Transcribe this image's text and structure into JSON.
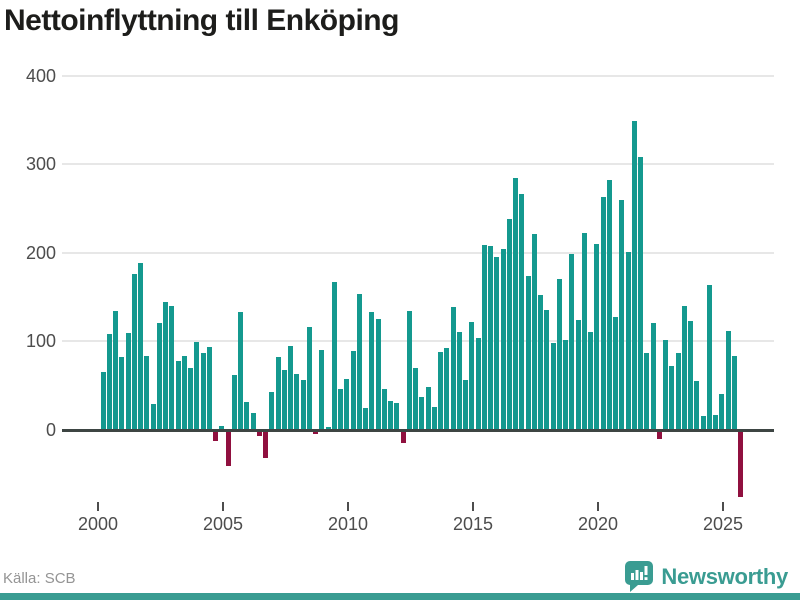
{
  "title": "Nettoinflyttning till Enköping",
  "source": "Källa: SCB",
  "brand": {
    "name": "Newsworthy",
    "icon": "bar-chart-speech-bubble-icon"
  },
  "colors": {
    "positive_bar": "#14998f",
    "negative_bar": "#90103f",
    "brand_teal": "#3a9c92",
    "gridline": "#e7e7e7",
    "zero_axis": "#3d4543",
    "axis_text": "#4d4d4d",
    "title_text": "#1d1d1b",
    "source_text": "#949494"
  },
  "chart_data": {
    "type": "bar",
    "title": "Nettoinflyttning till Enköping",
    "frequency": "quarterly",
    "period_start": "2000 Q1",
    "period_end": "2025 Q3",
    "x_tick_labels": [
      "2000",
      "2005",
      "2010",
      "2015",
      "2020",
      "2025"
    ],
    "y_ticks": [
      400,
      300,
      200,
      100,
      0
    ],
    "ylim": [
      -90,
      420
    ],
    "grid": "horizontal",
    "legend": "none",
    "positive_color": "#14998f",
    "negative_color": "#90103f",
    "values": [
      65,
      108,
      134,
      82,
      110,
      176,
      189,
      84,
      29,
      121,
      144,
      140,
      78,
      84,
      70,
      99,
      87,
      94,
      -11,
      5,
      -40,
      62,
      133,
      32,
      19,
      -6,
      -30,
      43,
      82,
      68,
      95,
      63,
      56,
      116,
      -3,
      90,
      3,
      167,
      46,
      58,
      89,
      153,
      25,
      133,
      125,
      46,
      33,
      30,
      -13,
      134,
      70,
      37,
      48,
      26,
      88,
      92,
      139,
      111,
      56,
      122,
      104,
      209,
      208,
      195,
      204,
      238,
      284,
      266,
      174,
      221,
      152,
      135,
      98,
      170,
      102,
      199,
      124,
      222,
      111,
      210,
      263,
      282,
      127,
      260,
      201,
      349,
      308,
      87,
      121,
      -9,
      102,
      72,
      87,
      140,
      123,
      55,
      16,
      164,
      17,
      41,
      112,
      84,
      -75
    ]
  }
}
